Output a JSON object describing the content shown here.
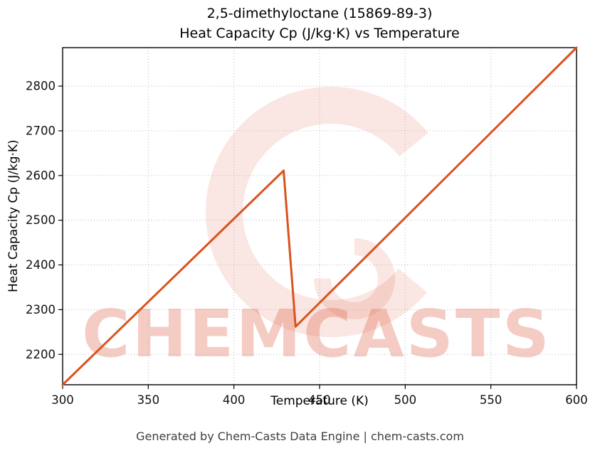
{
  "figure": {
    "title_line1": "2,5-dimethyloctane (15869-89-3)",
    "title_line2": "Heat Capacity Cp (J/kg·K) vs Temperature",
    "watermark_text": "CHEMCASTS",
    "footer": "Generated by Chem-Casts Data Engine | chem-casts.com"
  },
  "chart_data": {
    "type": "line",
    "title": "2,5-dimethyloctane (15869-89-3) — Heat Capacity Cp (J/kg·K) vs Temperature",
    "xlabel": "Temperature (K)",
    "ylabel": "Heat Capacity Cp (J/kg·K)",
    "xlim": [
      300,
      600
    ],
    "ylim": [
      2132,
      2886
    ],
    "xticks": [
      300,
      350,
      400,
      450,
      500,
      550,
      600
    ],
    "yticks": [
      2200,
      2300,
      2400,
      2500,
      2600,
      2700,
      2800
    ],
    "grid": true,
    "legend_position": "none",
    "line_color": "#d9531e",
    "grid_color": "#b8b8b8",
    "watermark_color": "#dd5a3c",
    "series": [
      {
        "name": "Heat Capacity Cp",
        "points": [
          [
            300,
            2132
          ],
          [
            429,
            2611
          ],
          [
            436,
            2262
          ],
          [
            600,
            2886
          ]
        ]
      }
    ]
  }
}
